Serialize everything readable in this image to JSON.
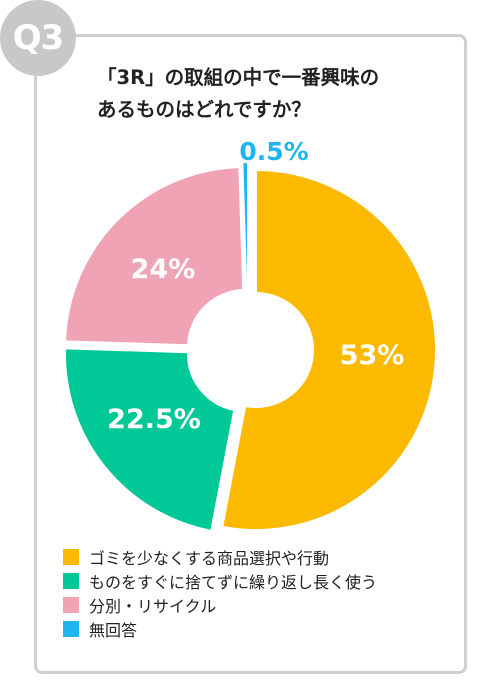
{
  "badge": "Q3",
  "title_line1": "「3R」の取組の中で一番興味の",
  "title_line2": "あるものはどれですか？",
  "chart_data": {
    "type": "pie",
    "donut": true,
    "series": [
      {
        "name": "ゴミを少なくする商品選択や行動",
        "value": 53,
        "label": "53%",
        "color": "#FBBA00"
      },
      {
        "name": "ものをすぐに捨てずに繰り返し長く使う",
        "value": 22.5,
        "label": "22.5%",
        "color": "#00C896"
      },
      {
        "name": "分別・リサイクル",
        "value": 24,
        "label": "24%",
        "color": "#F0A3B5"
      },
      {
        "name": "無回答",
        "value": 0.5,
        "label": "0.5%",
        "color": "#1FB5F0"
      }
    ],
    "legend_position": "bottom-left"
  }
}
